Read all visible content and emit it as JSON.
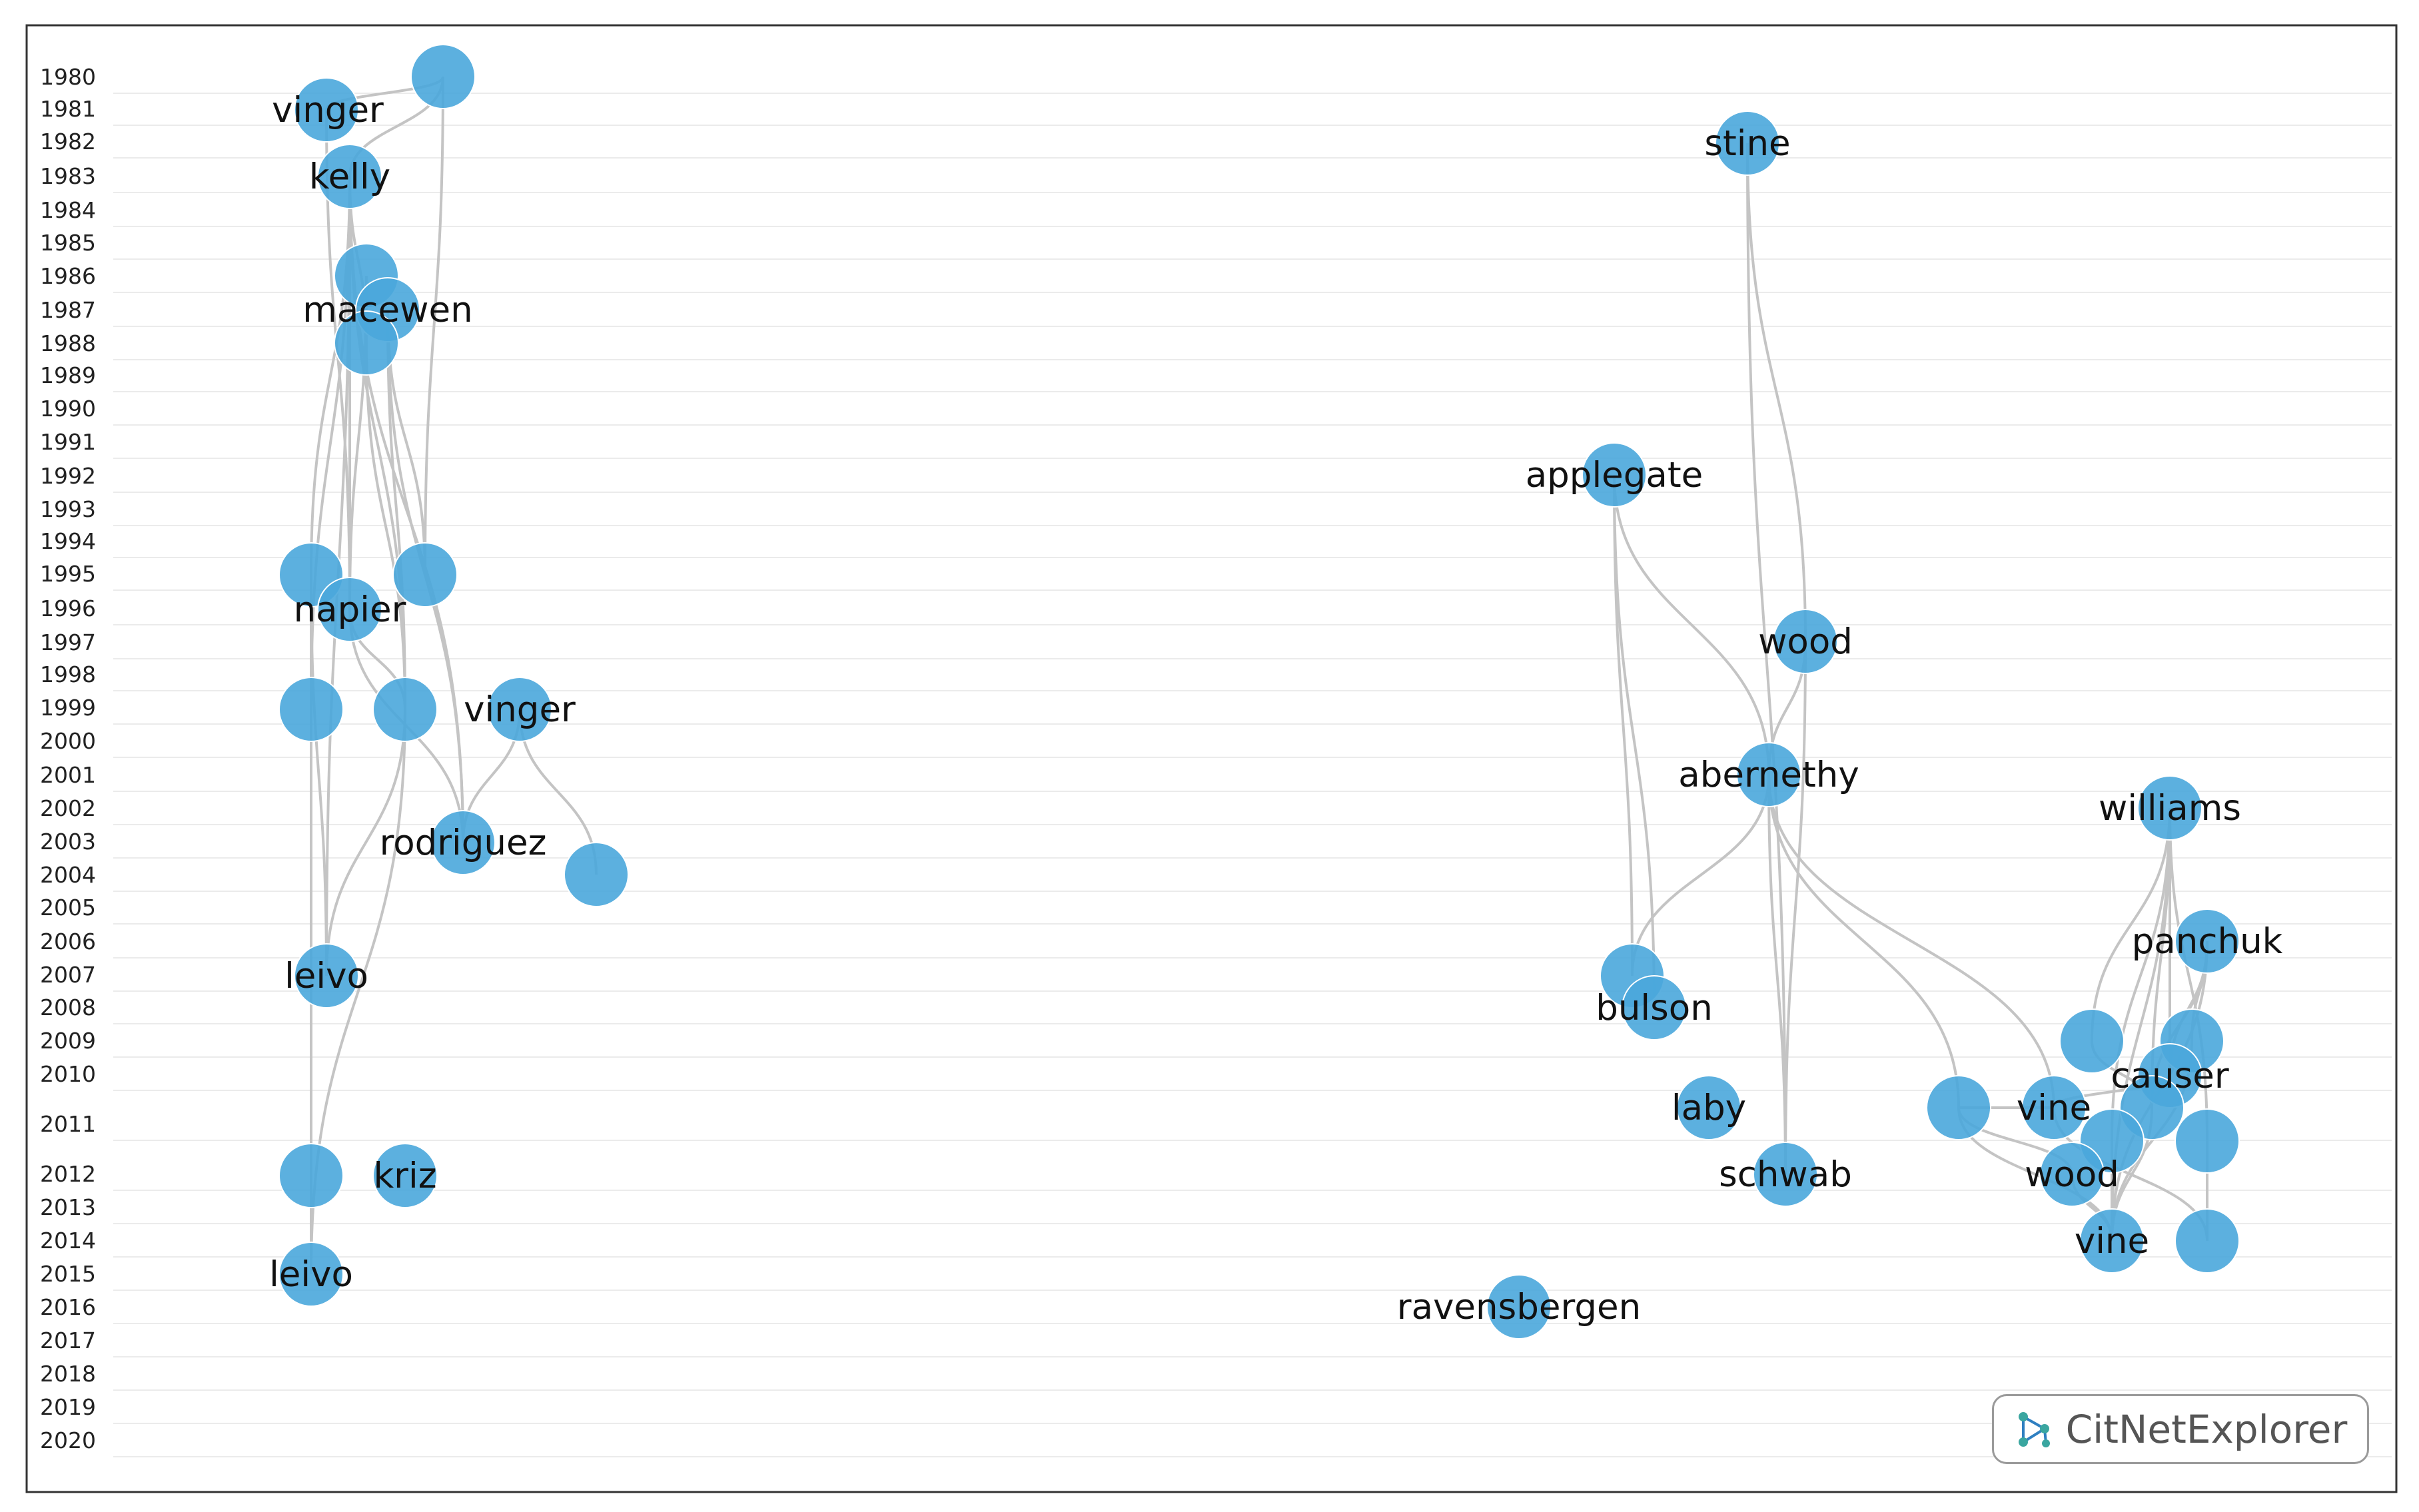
{
  "years": [
    "1980",
    "1981",
    "1982",
    "1983",
    "1984",
    "1985",
    "1986",
    "1987",
    "1988",
    "1989",
    "1990",
    "1991",
    "1992",
    "1993",
    "1994",
    "1995",
    "1996",
    "1997",
    "1998",
    "1999",
    "2000",
    "2001",
    "2002",
    "2003",
    "2004",
    "2005",
    "2006",
    "2007",
    "2008",
    "2009",
    "2010",
    "2011",
    "2012",
    "2013",
    "2014",
    "2015",
    "2016",
    "2017",
    "2018",
    "2019",
    "2020"
  ],
  "nodes": [
    {
      "id": "n1",
      "label": "vinger",
      "year": 1981
    },
    {
      "id": "n2",
      "label": "",
      "year": 1980
    },
    {
      "id": "n3",
      "label": "kelly",
      "year": 1983
    },
    {
      "id": "n4",
      "label": "",
      "year": 1986
    },
    {
      "id": "n5",
      "label": "macewen",
      "year": 1987
    },
    {
      "id": "n6",
      "label": "",
      "year": 1988
    },
    {
      "id": "n7",
      "label": "",
      "year": 1995
    },
    {
      "id": "n8",
      "label": "",
      "year": 1995
    },
    {
      "id": "n9",
      "label": "napier",
      "year": 1996
    },
    {
      "id": "n10",
      "label": "",
      "year": 1999
    },
    {
      "id": "n11",
      "label": "",
      "year": 1999
    },
    {
      "id": "n12",
      "label": "vinger",
      "year": 1999
    },
    {
      "id": "n13",
      "label": "rodriguez",
      "year": 2003
    },
    {
      "id": "n14",
      "label": "",
      "year": 2004
    },
    {
      "id": "n15",
      "label": "leivo",
      "year": 2007
    },
    {
      "id": "n16",
      "label": "",
      "year": 2012
    },
    {
      "id": "n17",
      "label": "kriz",
      "year": 2012
    },
    {
      "id": "n18",
      "label": "leivo",
      "year": 2015
    },
    {
      "id": "n19",
      "label": "stine",
      "year": 1982
    },
    {
      "id": "n20",
      "label": "applegate",
      "year": 1992
    },
    {
      "id": "n21",
      "label": "wood",
      "year": 1997
    },
    {
      "id": "n22",
      "label": "abernethy",
      "year": 2001
    },
    {
      "id": "n23",
      "label": "williams",
      "year": 2002
    },
    {
      "id": "n24",
      "label": "panchuk",
      "year": 2006
    },
    {
      "id": "n25",
      "label": "",
      "year": 2007
    },
    {
      "id": "n26",
      "label": "bulson",
      "year": 2008
    },
    {
      "id": "n27",
      "label": "",
      "year": 2009
    },
    {
      "id": "n28",
      "label": "",
      "year": 2009
    },
    {
      "id": "n29",
      "label": "causer",
      "year": 2010
    },
    {
      "id": "n30",
      "label": "laby",
      "year": 2011
    },
    {
      "id": "n31",
      "label": "",
      "year": 2011
    },
    {
      "id": "n32",
      "label": "vine",
      "year": 2011
    },
    {
      "id": "n33",
      "label": "",
      "year": 2011
    },
    {
      "id": "n34",
      "label": "",
      "year": 2012
    },
    {
      "id": "n35",
      "label": "",
      "year": 2012
    },
    {
      "id": "n36",
      "label": "schwab",
      "year": 2012
    },
    {
      "id": "n37",
      "label": "wood",
      "year": 2013
    },
    {
      "id": "n38",
      "label": "vine",
      "year": 2014
    },
    {
      "id": "n39",
      "label": "",
      "year": 2014
    },
    {
      "id": "n40",
      "label": "ravensbergen",
      "year": 2016
    }
  ],
  "edges": [
    [
      "n2",
      "n1"
    ],
    [
      "n2",
      "n3"
    ],
    [
      "n2",
      "n8"
    ],
    [
      "n3",
      "n6"
    ],
    [
      "n3",
      "n7"
    ],
    [
      "n3",
      "n9"
    ],
    [
      "n3",
      "n10"
    ],
    [
      "n3",
      "n11"
    ],
    [
      "n3",
      "n13"
    ],
    [
      "n3",
      "n15"
    ],
    [
      "n1",
      "n9"
    ],
    [
      "n5",
      "n8"
    ],
    [
      "n5",
      "n11"
    ],
    [
      "n5",
      "n13"
    ],
    [
      "n6",
      "n11"
    ],
    [
      "n4",
      "n9"
    ],
    [
      "n7",
      "n10"
    ],
    [
      "n7",
      "n15"
    ],
    [
      "n9",
      "n11"
    ],
    [
      "n9",
      "n13"
    ],
    [
      "n10",
      "n16"
    ],
    [
      "n10",
      "n18"
    ],
    [
      "n11",
      "n15"
    ],
    [
      "n11",
      "n18"
    ],
    [
      "n12",
      "n13"
    ],
    [
      "n12",
      "n14"
    ],
    [
      "n19",
      "n21"
    ],
    [
      "n19",
      "n36"
    ],
    [
      "n20",
      "n22"
    ],
    [
      "n20",
      "n25"
    ],
    [
      "n20",
      "n26"
    ],
    [
      "n21",
      "n22"
    ],
    [
      "n21",
      "n36"
    ],
    [
      "n22",
      "n25"
    ],
    [
      "n22",
      "n31"
    ],
    [
      "n22",
      "n36"
    ],
    [
      "n22",
      "n32"
    ],
    [
      "n23",
      "n29"
    ],
    [
      "n23",
      "n33"
    ],
    [
      "n23",
      "n34"
    ],
    [
      "n23",
      "n35"
    ],
    [
      "n23",
      "n38"
    ],
    [
      "n23",
      "n27"
    ],
    [
      "n24",
      "n29"
    ],
    [
      "n24",
      "n33"
    ],
    [
      "n24",
      "n38"
    ],
    [
      "n24",
      "n28"
    ],
    [
      "n31",
      "n32"
    ],
    [
      "n31",
      "n37"
    ],
    [
      "n31",
      "n38"
    ],
    [
      "n32",
      "n29"
    ],
    [
      "n27",
      "n33"
    ],
    [
      "n28",
      "n38"
    ],
    [
      "n33",
      "n38"
    ],
    [
      "n34",
      "n38"
    ],
    [
      "n37",
      "n38"
    ],
    [
      "n35",
      "n39"
    ],
    [
      "n32",
      "n39"
    ]
  ],
  "brand": {
    "name": "CitNetExplorer",
    "icon": "network-icon"
  }
}
